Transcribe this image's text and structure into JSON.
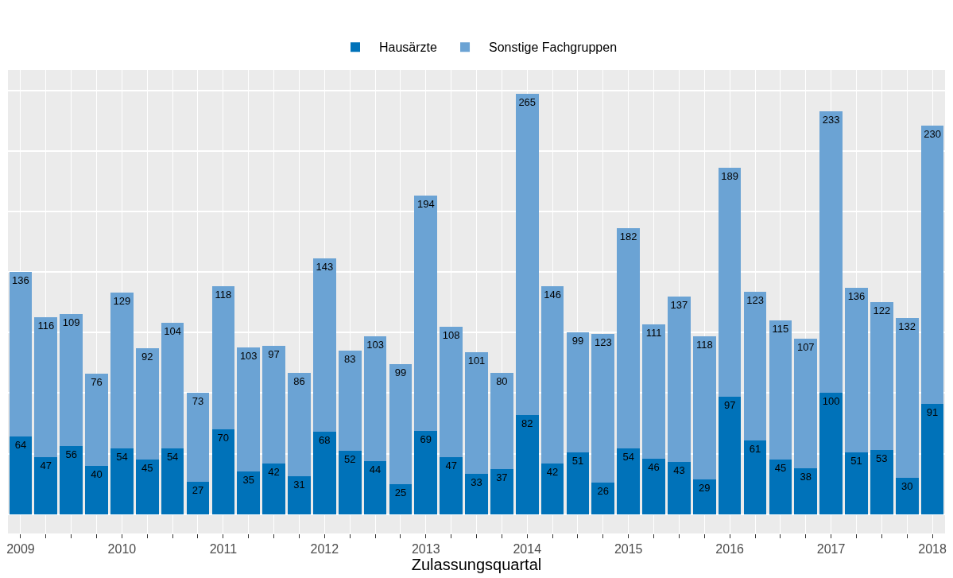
{
  "chart_data": {
    "type": "bar",
    "stacked": true,
    "xlabel": "Zulassungsquartal",
    "categories": [
      "2009",
      null,
      null,
      null,
      "2010",
      null,
      null,
      null,
      "2011",
      null,
      null,
      null,
      "2012",
      null,
      null,
      null,
      "2013",
      null,
      null,
      null,
      "2014",
      null,
      null,
      null,
      "2015",
      null,
      null,
      null,
      "2016",
      null,
      null,
      null,
      "2017",
      null,
      null,
      null,
      "2018"
    ],
    "series": [
      {
        "name": "Hausärzte",
        "color": "#0072b9",
        "values": [
          64,
          47,
          56,
          40,
          54,
          45,
          54,
          27,
          70,
          35,
          42,
          31,
          68,
          52,
          44,
          25,
          69,
          47,
          33,
          37,
          82,
          42,
          51,
          26,
          54,
          46,
          43,
          29,
          97,
          61,
          45,
          38,
          100,
          51,
          53,
          30,
          91
        ]
      },
      {
        "name": "Sonstige Fachgruppen",
        "color": "#6ba3d4",
        "values": [
          136,
          116,
          109,
          76,
          129,
          92,
          104,
          73,
          118,
          103,
          97,
          86,
          143,
          83,
          103,
          99,
          194,
          108,
          101,
          80,
          265,
          146,
          99,
          123,
          182,
          111,
          137,
          118,
          189,
          123,
          115,
          107,
          233,
          136,
          122,
          132,
          230
        ]
      }
    ],
    "data_labels": true,
    "legend": "top",
    "grid": true,
    "tick_labels": "x",
    "ylim": [
      -16,
      367
    ],
    "yticks": [
      {
        "value": 0,
        "label": null
      },
      {
        "value": 50,
        "label": null
      },
      {
        "value": 100,
        "label": null
      },
      {
        "value": 150,
        "label": null
      },
      {
        "value": 200,
        "label": null
      },
      {
        "value": 250,
        "label": null
      },
      {
        "value": 300,
        "label": null
      },
      {
        "value": 350,
        "label": null
      }
    ]
  }
}
